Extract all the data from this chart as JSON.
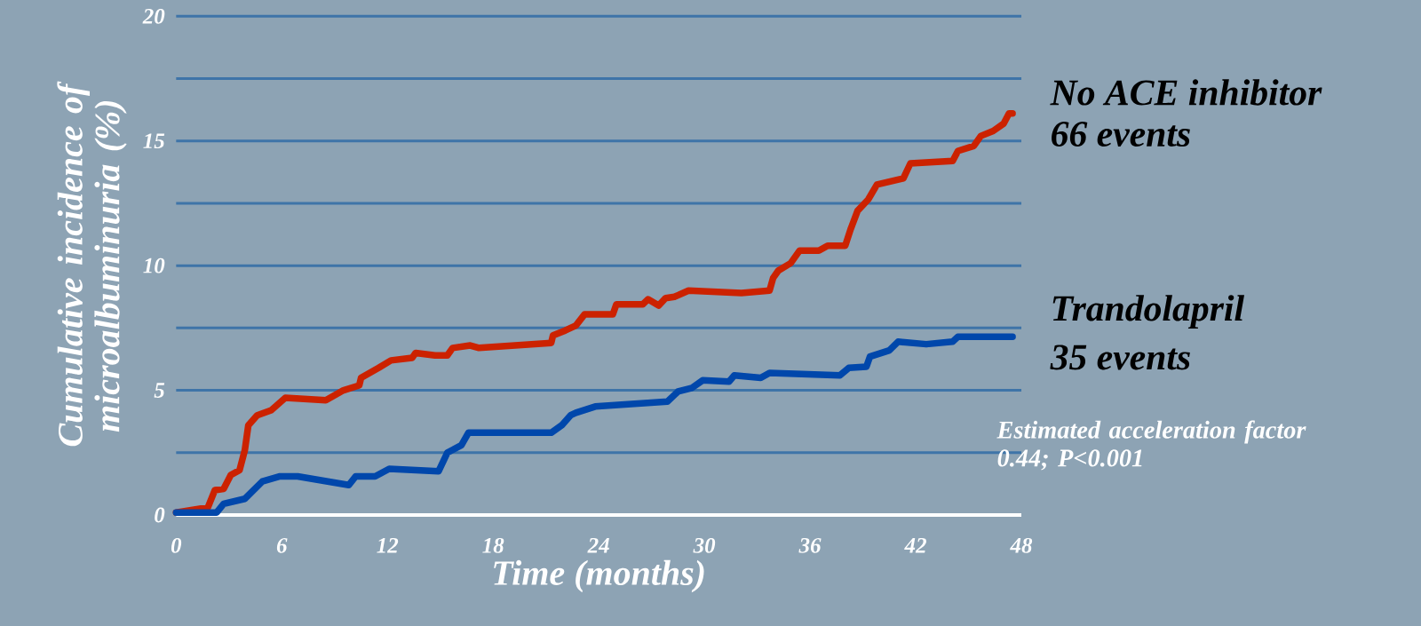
{
  "chart_data": {
    "type": "line",
    "xlabel": "Time (months)",
    "ylabel": "Cumulative incidence of microalbuminuria (%)",
    "xlim": [
      0,
      48
    ],
    "ylim": [
      0,
      20
    ],
    "xticks": [
      0,
      6,
      12,
      18,
      24,
      30,
      36,
      42,
      48
    ],
    "yticks": [
      0,
      {
        "value": 2.5,
        "label": null
      },
      5,
      {
        "value": 7.5,
        "label": null
      },
      10,
      {
        "value": 12.5,
        "label": null
      },
      15,
      {
        "value": 17.5,
        "label": null
      },
      20
    ],
    "grid": "y",
    "series": [
      {
        "name": "No ACE inhibitor",
        "color": "#cc2200",
        "x": [
          0,
          1.8,
          2.2,
          2.7,
          3.1,
          3.6,
          3.9,
          4.1,
          4.6,
          5.4,
          6.2,
          8.5,
          9.5,
          10.4,
          10.5,
          11.5,
          12.2,
          13.4,
          13.6,
          14.7,
          15.4,
          15.7,
          16.7,
          17.2,
          21.3,
          21.4,
          22.1,
          22.7,
          23.2,
          24.8,
          25.0,
          26.5,
          26.8,
          27.4,
          27.8,
          28.3,
          29.1,
          32.1,
          33.7,
          33.9,
          34.2,
          34.9,
          35.4,
          36.5,
          37.0,
          38.0,
          38.3,
          38.7,
          39.3,
          39.8,
          41.3,
          41.7,
          44.1,
          44.4,
          45.3,
          45.7,
          46.4,
          47.0,
          47.3,
          47.5
        ],
        "values": [
          0.1,
          0.3,
          1.0,
          1.05,
          1.6,
          1.8,
          2.6,
          3.6,
          4.0,
          4.2,
          4.7,
          4.6,
          5.0,
          5.2,
          5.5,
          5.9,
          6.2,
          6.3,
          6.5,
          6.4,
          6.4,
          6.7,
          6.8,
          6.7,
          6.9,
          7.2,
          7.4,
          7.6,
          8.05,
          8.05,
          8.45,
          8.45,
          8.65,
          8.4,
          8.7,
          8.75,
          9.0,
          8.9,
          9.0,
          9.5,
          9.8,
          10.1,
          10.6,
          10.6,
          10.8,
          10.8,
          11.45,
          12.2,
          12.65,
          13.25,
          13.5,
          14.1,
          14.2,
          14.6,
          14.8,
          15.2,
          15.4,
          15.7,
          16.1,
          16.1
        ]
      },
      {
        "name": "Trandolapril",
        "color": "#0047ab",
        "x": [
          0,
          2.3,
          2.7,
          3.9,
          4.4,
          4.9,
          5.9,
          6.9,
          9.8,
          10.2,
          11.3,
          12.1,
          14.9,
          15.4,
          16.2,
          16.6,
          21.3,
          21.9,
          22.4,
          22.7,
          23.8,
          27.9,
          28.5,
          29.3,
          29.9,
          31.4,
          31.7,
          33.2,
          33.7,
          37.7,
          38.2,
          39.2,
          39.4,
          40.5,
          41.0,
          42.6,
          44.1,
          44.4,
          47.5
        ],
        "values": [
          0.1,
          0.1,
          0.45,
          0.65,
          1.0,
          1.35,
          1.55,
          1.55,
          1.2,
          1.55,
          1.55,
          1.85,
          1.75,
          2.5,
          2.8,
          3.3,
          3.3,
          3.6,
          4.0,
          4.1,
          4.35,
          4.55,
          4.95,
          5.1,
          5.4,
          5.35,
          5.6,
          5.5,
          5.7,
          5.6,
          5.9,
          5.95,
          6.35,
          6.6,
          6.95,
          6.85,
          6.95,
          7.15,
          7.15
        ]
      }
    ],
    "annotations": [
      "66 events",
      "35 events",
      "Estimated acceleration factor 0.44; P<0.001"
    ]
  }
}
